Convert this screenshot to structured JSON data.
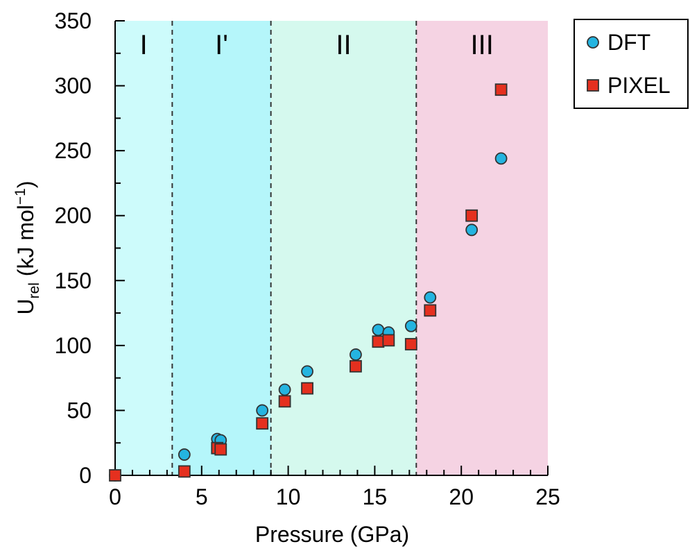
{
  "chart_data": {
    "type": "scatter",
    "title": "",
    "xlabel": "Pressure (GPa)",
    "ylabel": {
      "main": "U",
      "sub": "rel",
      "rest": " (kJ mol",
      "sup": "−1",
      "end": ")"
    },
    "xlim": [
      0,
      25
    ],
    "ylim": [
      0,
      350
    ],
    "x_ticks": [
      "0",
      "5",
      "10",
      "15",
      "20",
      "25"
    ],
    "y_ticks": [
      "0",
      "50",
      "100",
      "150",
      "200",
      "250",
      "300",
      "350"
    ],
    "x_tick_values": [
      0,
      5,
      10,
      15,
      20,
      25
    ],
    "y_tick_values": [
      0,
      50,
      100,
      150,
      200,
      250,
      300,
      350
    ],
    "grid": false,
    "legend_position": "outside-top-right",
    "regions": [
      {
        "label": "I",
        "from": 0,
        "to": 3.3,
        "color": "#cdfbfb"
      },
      {
        "label": "I'",
        "from": 3.3,
        "to": 9.0,
        "color": "#b5f6fa"
      },
      {
        "label": "II",
        "from": 9.0,
        "to": 17.4,
        "color": "#d5f9ee"
      },
      {
        "label": "III",
        "from": 17.4,
        "to": 25,
        "color": "#f5d3e3"
      }
    ],
    "boundaries": [
      3.3,
      9.0,
      17.4
    ],
    "series": [
      {
        "name": "DFT",
        "marker": "circle",
        "color": "#24b4e0",
        "points": [
          {
            "x": 0.0,
            "y": 0
          },
          {
            "x": 4.0,
            "y": 16
          },
          {
            "x": 5.9,
            "y": 28
          },
          {
            "x": 6.1,
            "y": 27
          },
          {
            "x": 8.5,
            "y": 50
          },
          {
            "x": 9.8,
            "y": 66
          },
          {
            "x": 11.1,
            "y": 80
          },
          {
            "x": 13.9,
            "y": 93
          },
          {
            "x": 15.2,
            "y": 112
          },
          {
            "x": 15.8,
            "y": 110
          },
          {
            "x": 17.1,
            "y": 115
          },
          {
            "x": 18.2,
            "y": 137
          },
          {
            "x": 20.6,
            "y": 189
          },
          {
            "x": 22.3,
            "y": 244
          }
        ]
      },
      {
        "name": "PIXEL",
        "marker": "square",
        "color": "#e5301f",
        "points": [
          {
            "x": 0.0,
            "y": 0
          },
          {
            "x": 4.0,
            "y": 3
          },
          {
            "x": 5.9,
            "y": 21
          },
          {
            "x": 6.1,
            "y": 20
          },
          {
            "x": 8.5,
            "y": 40
          },
          {
            "x": 9.8,
            "y": 57
          },
          {
            "x": 11.1,
            "y": 67
          },
          {
            "x": 13.9,
            "y": 84
          },
          {
            "x": 15.2,
            "y": 103
          },
          {
            "x": 15.8,
            "y": 104
          },
          {
            "x": 17.1,
            "y": 101
          },
          {
            "x": 18.2,
            "y": 127
          },
          {
            "x": 20.6,
            "y": 200
          },
          {
            "x": 22.3,
            "y": 297
          }
        ]
      }
    ]
  }
}
